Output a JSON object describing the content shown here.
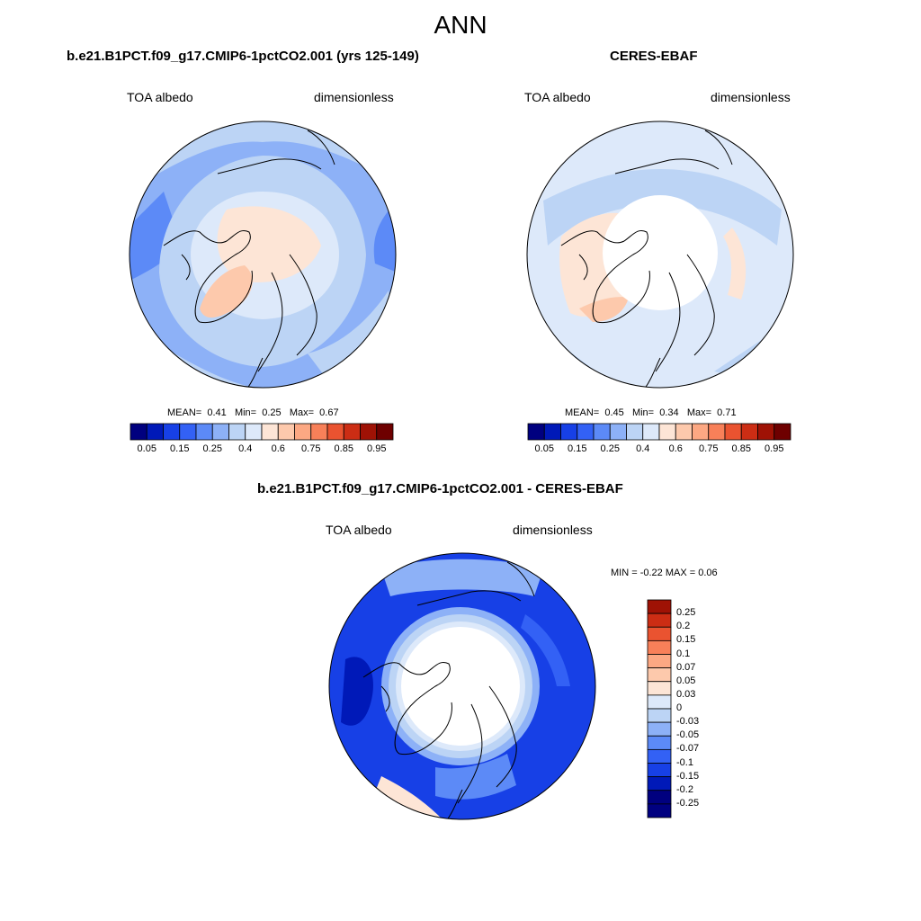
{
  "title": "ANN",
  "colors": {
    "albedo_scale": [
      "#00007f",
      "#0019b8",
      "#1740e6",
      "#3361f5",
      "#5c8af7",
      "#8db1f7",
      "#bcd4f5",
      "#dde9fa",
      "#fde5d6",
      "#fdc9ac",
      "#fca883",
      "#f88059",
      "#ea5330",
      "#cc2d14",
      "#9f1205",
      "#6e0000"
    ],
    "diff_scale": [
      "#00007f",
      "#0019b8",
      "#1740e6",
      "#3361f5",
      "#5c8af7",
      "#8db1f7",
      "#bcd4f5",
      "#dde9fa",
      "#fde5d6",
      "#fdc9ac",
      "#fca883",
      "#f88059",
      "#ea5330",
      "#cc2d14",
      "#9f1205"
    ],
    "land_line": "#000000",
    "missing": "#ffffff"
  },
  "panels": {
    "model": {
      "title": "b.e21.B1PCT.f09_g17.CMIP6-1pctCO2.001 (yrs 125-149)",
      "left_label": "TOA albedo",
      "right_label": "dimensionless",
      "mean_label": "MEAN=",
      "mean_value": "0.41",
      "min_label": "Min=",
      "min_value": "0.25",
      "max_label": "Max=",
      "max_value": "0.67",
      "colorbar_ticks": [
        "0.05",
        "0.15",
        "0.25",
        "0.4",
        "0.6",
        "0.75",
        "0.85",
        "0.95"
      ]
    },
    "obs": {
      "title": "CERES-EBAF",
      "left_label": "TOA albedo",
      "right_label": "dimensionless",
      "mean_label": "MEAN=",
      "mean_value": "0.45",
      "min_label": "Min=",
      "min_value": "0.34",
      "max_label": "Max=",
      "max_value": "0.71",
      "colorbar_ticks": [
        "0.05",
        "0.15",
        "0.25",
        "0.4",
        "0.6",
        "0.75",
        "0.85",
        "0.95"
      ]
    },
    "diff": {
      "title": "b.e21.B1PCT.f09_g17.CMIP6-1pctCO2.001 - CERES-EBAF",
      "left_label": "TOA albedo",
      "right_label": "dimensionless",
      "minmax_text": "MIN =  -0.22 MAX =   0.06",
      "colorbar_ticks": [
        "0.25",
        "0.2",
        "0.15",
        "0.1",
        "0.07",
        "0.05",
        "0.03",
        "0",
        "-0.03",
        "-0.05",
        "-0.07",
        "-0.1",
        "-0.15",
        "-0.2",
        "-0.25"
      ]
    }
  }
}
